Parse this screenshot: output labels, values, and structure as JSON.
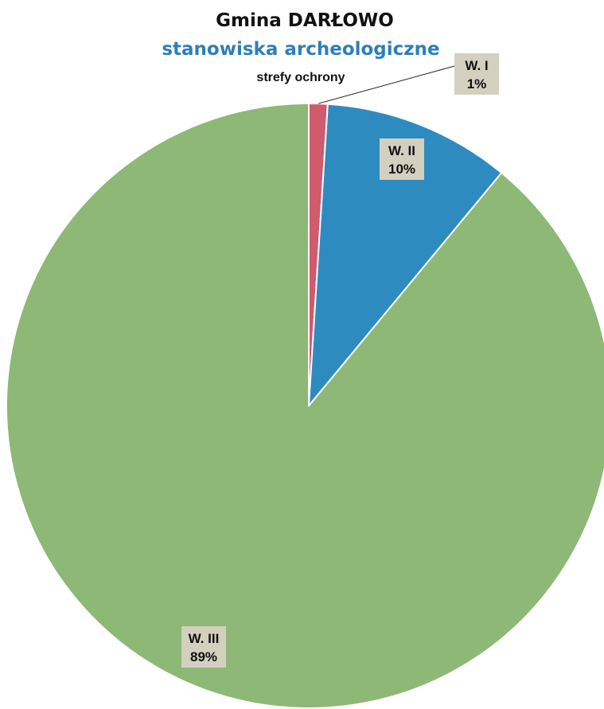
{
  "chart_data": {
    "type": "pie",
    "title": "Gmina DARŁOWO",
    "subtitle": "stanowiska archeologiczne",
    "subsubtitle": "strefy ochrony",
    "slices": [
      {
        "label": "W. I",
        "value": 1,
        "value_label": "1%",
        "color": "#d05a6e"
      },
      {
        "label": "W. II",
        "value": 10,
        "value_label": "10%",
        "color": "#2e8bc0"
      },
      {
        "label": "W. III",
        "value": 89,
        "value_label": "89%",
        "color": "#8db876"
      }
    ],
    "start_angle_deg": 0,
    "direction": "clockwise",
    "legend": "none",
    "label_box_color": "#d3d0c0",
    "title_color": "#111111",
    "subtitle_color": "#2e7fb5"
  }
}
